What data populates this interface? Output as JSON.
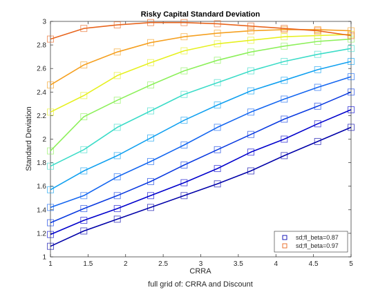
{
  "chart_data": {
    "type": "line",
    "title": "Risky Capital Standard Deviation",
    "xlabel": "CRRA",
    "ylabel": "Standard Deviation",
    "caption": "full grid of: CRRA and Discount",
    "xlim": [
      1,
      5
    ],
    "ylim": [
      1,
      3
    ],
    "xticks": [
      "1",
      "1.5",
      "2",
      "2.5",
      "3",
      "3.5",
      "4",
      "4.5",
      "5"
    ],
    "yticks": [
      "1",
      "1.2",
      "1.4",
      "1.6",
      "1.8",
      "2",
      "2.2",
      "2.4",
      "2.6",
      "2.8",
      "3"
    ],
    "grid": false,
    "legend_position": "bottom-right",
    "legend": [
      {
        "label": "sd;fl_beta=0.87",
        "color": "#0000b0"
      },
      {
        "label": "sd;fl_beta=0.97",
        "color": "#e8641c"
      }
    ],
    "x": [
      1.0,
      1.444,
      1.889,
      2.333,
      2.778,
      3.222,
      3.667,
      4.111,
      4.556,
      5.0
    ],
    "series": [
      {
        "color": "#0000a8",
        "values": [
          1.09,
          1.22,
          1.32,
          1.42,
          1.52,
          1.62,
          1.73,
          1.86,
          1.98,
          2.1
        ]
      },
      {
        "color": "#0000cc",
        "values": [
          1.19,
          1.31,
          1.41,
          1.52,
          1.63,
          1.75,
          1.89,
          2.0,
          2.13,
          2.25
        ]
      },
      {
        "color": "#0a3ae0",
        "values": [
          1.29,
          1.41,
          1.52,
          1.64,
          1.78,
          1.91,
          2.04,
          2.17,
          2.28,
          2.4
        ]
      },
      {
        "color": "#1466f0",
        "values": [
          1.42,
          1.52,
          1.68,
          1.81,
          1.95,
          2.1,
          2.23,
          2.34,
          2.44,
          2.53
        ]
      },
      {
        "color": "#10a0f0",
        "values": [
          1.57,
          1.73,
          1.86,
          2.01,
          2.16,
          2.29,
          2.41,
          2.5,
          2.59,
          2.66
        ]
      },
      {
        "color": "#3cdcc8",
        "values": [
          1.77,
          1.91,
          2.1,
          2.24,
          2.38,
          2.48,
          2.58,
          2.66,
          2.72,
          2.77
        ]
      },
      {
        "color": "#8cf05a",
        "values": [
          1.9,
          2.19,
          2.33,
          2.46,
          2.58,
          2.67,
          2.74,
          2.79,
          2.83,
          2.85
        ]
      },
      {
        "color": "#e6f020",
        "values": [
          2.23,
          2.37,
          2.54,
          2.65,
          2.75,
          2.81,
          2.84,
          2.87,
          2.88,
          2.89
        ]
      },
      {
        "color": "#f5a020",
        "values": [
          2.46,
          2.63,
          2.74,
          2.82,
          2.87,
          2.9,
          2.92,
          2.93,
          2.93,
          2.92
        ]
      },
      {
        "color": "#e8641c",
        "values": [
          2.85,
          2.94,
          2.97,
          2.99,
          2.99,
          2.98,
          2.96,
          2.94,
          2.92,
          2.88
        ]
      }
    ]
  }
}
